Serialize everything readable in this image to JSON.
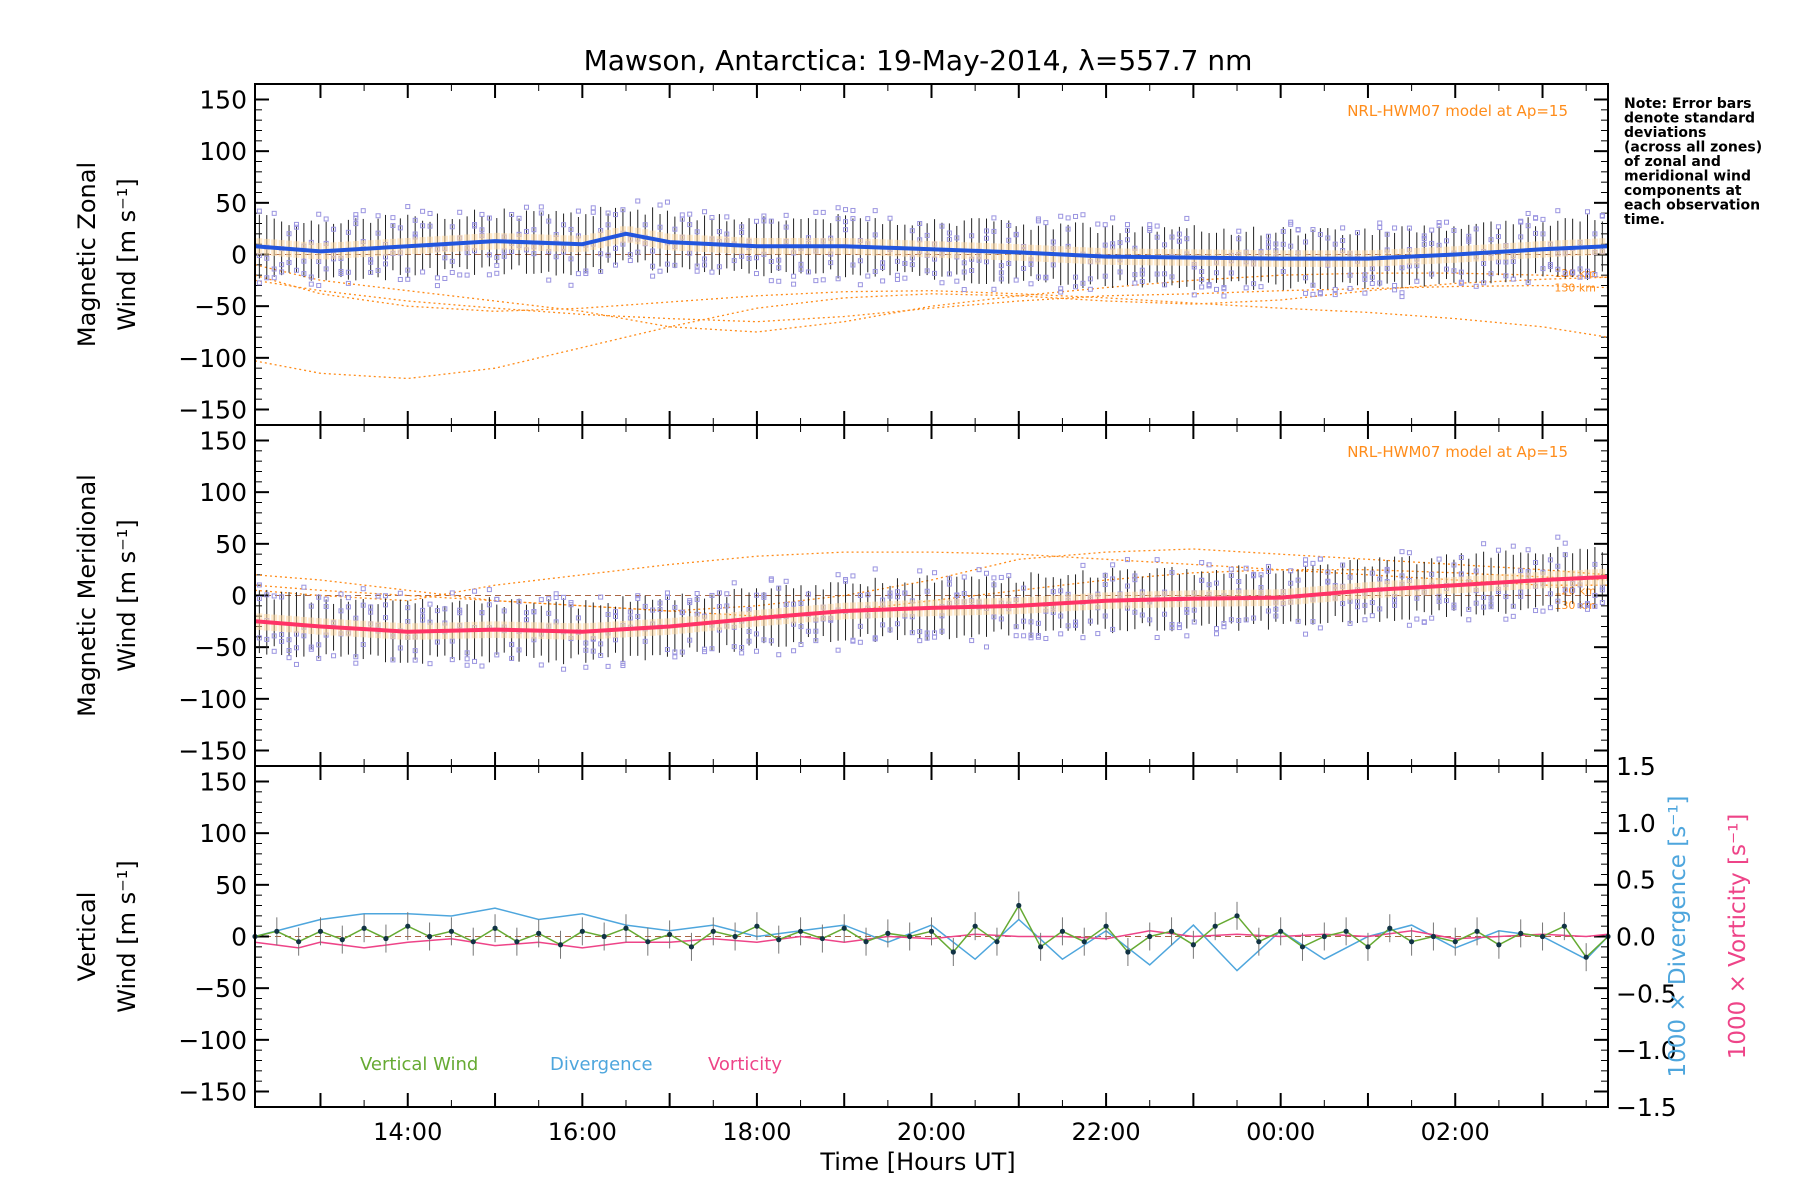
{
  "title": "Mawson, Antarctica: 19-May-2014, λ=557.7 nm",
  "note": [
    "Note: Error bars",
    "denote standard",
    "deviations",
    "(across all zones)",
    "of zonal and",
    "meridional wind",
    "components at",
    "each observation",
    "time."
  ],
  "xlabel": "Time [Hours UT]",
  "x_ticks": [
    "14:00",
    "16:00",
    "18:00",
    "20:00",
    "22:00",
    "00:00",
    "02:00"
  ],
  "y_ticks": [
    "150",
    "100",
    "50",
    "0",
    "−50",
    "−100",
    "−150"
  ],
  "right_ticks": [
    "1.5",
    "1.0",
    "0.5",
    "0.0",
    "−0.5",
    "−1.0",
    "−1.5"
  ],
  "model_label": "NRL-HWM07 model at Ap=15",
  "alt_labels": [
    "120 km",
    "130 km"
  ],
  "legend": {
    "vertical": "Vertical Wind",
    "divergence": "Divergence",
    "vorticity": "Vorticity"
  },
  "colors": {
    "zonal": "#2255dd",
    "meridional": "#ff3366",
    "model": "#ff8c1a",
    "scatter": "#9a94e0",
    "vertical": "#66aa33",
    "divergence": "#4ea6dd",
    "vorticity": "#ee4488"
  },
  "chart_data": [
    {
      "type": "line",
      "panel": "zonal",
      "title": "Mawson, Antarctica: 19-May-2014, λ=557.7 nm",
      "ylabel_lines": [
        "Magnetic Zonal",
        "Wind [m s⁻¹]"
      ],
      "xlabel": "",
      "x_range_hours_ut": [
        12.25,
        27.75
      ],
      "ylim": [
        -165,
        165
      ],
      "series": [
        {
          "name": "",
          "x": [
            12.25,
            13,
            14,
            15,
            16,
            16.5,
            17,
            18,
            19,
            20,
            21,
            22,
            23,
            24,
            25,
            26,
            27,
            27.75
          ],
          "y": [
            8,
            3,
            8,
            13,
            10,
            20,
            12,
            8,
            8,
            5,
            2,
            -2,
            -3,
            -4,
            -4,
            0,
            5,
            8
          ]
        }
      ],
      "model_series": [
        {
          "x": [
            12.25,
            13,
            14,
            15,
            16,
            17,
            18,
            19,
            20,
            21,
            22,
            23,
            24,
            25,
            26,
            27,
            27.75
          ],
          "y": [
            -103,
            -115,
            -120,
            -110,
            -90,
            -70,
            -52,
            -42,
            -38,
            -40,
            -45,
            -48,
            -44,
            -35,
            -28,
            -24,
            -22
          ]
        },
        {
          "x": [
            12.25,
            13,
            14,
            15,
            16,
            17,
            18,
            19,
            20,
            21,
            22,
            23,
            24,
            25,
            26,
            27,
            27.75
          ],
          "y": [
            -20,
            -38,
            -50,
            -55,
            -52,
            -46,
            -40,
            -36,
            -35,
            -38,
            -42,
            -47,
            -52,
            -56,
            -62,
            -70,
            -80
          ]
        },
        {
          "x": [
            12.25,
            13,
            14,
            15,
            16,
            17,
            18,
            19,
            20,
            21,
            22,
            23,
            24,
            25,
            26,
            27,
            27.75
          ],
          "y": [
            -10,
            -25,
            -35,
            -45,
            -55,
            -70,
            -75,
            -65,
            -50,
            -40,
            -32,
            -25,
            -20,
            -18,
            -18,
            -20,
            -22
          ]
        },
        {
          "x": [
            12.25,
            13,
            14,
            15,
            16,
            17,
            18,
            19,
            20,
            21,
            22,
            23,
            24,
            25,
            26,
            27,
            27.75
          ],
          "y": [
            -25,
            -35,
            -45,
            -52,
            -58,
            -62,
            -65,
            -60,
            -52,
            -45,
            -40,
            -38,
            -35,
            -33,
            -31,
            -30,
            -32
          ]
        }
      ]
    },
    {
      "type": "line",
      "panel": "meridional",
      "ylabel_lines": [
        "Magnetic Meridional",
        "Wind [m s⁻¹]"
      ],
      "xlabel": "",
      "x_range_hours_ut": [
        12.25,
        27.75
      ],
      "ylim": [
        -165,
        165
      ],
      "series": [
        {
          "name": "",
          "x": [
            12.25,
            13,
            14,
            15,
            16,
            17,
            18,
            19,
            20,
            21,
            22,
            23,
            24,
            25,
            26,
            27,
            27.75
          ],
          "y": [
            -25,
            -30,
            -35,
            -33,
            -35,
            -30,
            -22,
            -15,
            -12,
            -10,
            -5,
            -3,
            -2,
            5,
            10,
            15,
            18
          ]
        }
      ],
      "model_series": [
        {
          "x": [
            12.25,
            13,
            14,
            15,
            16,
            17,
            18,
            19,
            20,
            21,
            22,
            23,
            24,
            25,
            26,
            27,
            27.75
          ],
          "y": [
            20,
            15,
            5,
            -5,
            -10,
            -15,
            -10,
            0,
            15,
            35,
            42,
            45,
            40,
            35,
            30,
            25,
            20
          ]
        },
        {
          "x": [
            12.25,
            13,
            14,
            15,
            16,
            17,
            18,
            19,
            20,
            21,
            22,
            23,
            24,
            25,
            26,
            27,
            27.75
          ],
          "y": [
            10,
            5,
            0,
            -5,
            -10,
            -15,
            -20,
            -15,
            -5,
            5,
            15,
            22,
            25,
            25,
            22,
            18,
            15
          ]
        },
        {
          "x": [
            12.25,
            13,
            14,
            15,
            16,
            17,
            18,
            19,
            20,
            21,
            22,
            23,
            24,
            25,
            26,
            27,
            27.75
          ],
          "y": [
            5,
            0,
            -5,
            10,
            20,
            30,
            38,
            42,
            42,
            40,
            35,
            30,
            25,
            20,
            15,
            10,
            10
          ]
        }
      ]
    },
    {
      "type": "line",
      "panel": "vertical",
      "ylabel_lines": [
        "Vertical",
        "Wind [m s⁻¹]"
      ],
      "right_ylabel_lines": [
        "1000 × Divergence [s⁻¹]",
        "1000 × Vorticity [s⁻¹]"
      ],
      "xlabel": "Time [Hours UT]",
      "x_range_hours_ut": [
        12.25,
        27.75
      ],
      "ylim": [
        -165,
        165
      ],
      "right_ylim": [
        -1.5,
        1.5
      ],
      "series": [
        {
          "name": "Vertical Wind",
          "x": [
            12.25,
            12.5,
            12.75,
            13,
            13.25,
            13.5,
            13.75,
            14,
            14.25,
            14.5,
            14.75,
            15,
            15.25,
            15.5,
            15.75,
            16,
            16.25,
            16.5,
            16.75,
            17,
            17.25,
            17.5,
            17.75,
            18,
            18.25,
            18.5,
            18.75,
            19,
            19.25,
            19.5,
            19.75,
            20,
            20.25,
            20.5,
            20.75,
            21,
            21.25,
            21.5,
            21.75,
            22,
            22.25,
            22.5,
            22.75,
            23,
            23.25,
            23.5,
            23.75,
            24,
            24.25,
            24.5,
            24.75,
            25,
            25.25,
            25.5,
            25.75,
            26,
            26.25,
            26.5,
            26.75,
            27,
            27.25,
            27.5,
            27.75
          ],
          "y": [
            0,
            5,
            -5,
            5,
            -3,
            8,
            -2,
            10,
            0,
            5,
            -5,
            8,
            -5,
            3,
            -8,
            5,
            0,
            8,
            -5,
            2,
            -10,
            5,
            0,
            10,
            -3,
            5,
            -2,
            8,
            -5,
            3,
            0,
            5,
            -15,
            10,
            -5,
            30,
            -10,
            5,
            -5,
            10,
            -15,
            0,
            5,
            -8,
            10,
            20,
            -5,
            5,
            -10,
            0,
            5,
            -10,
            8,
            -5,
            0,
            -5,
            5,
            -8,
            3,
            0,
            10,
            -20,
            0
          ]
        },
        {
          "name": "Divergence",
          "x": [
            12.25,
            12.75,
            13,
            13.5,
            14,
            14.5,
            15,
            15.5,
            16,
            16.5,
            17,
            17.5,
            18,
            18.5,
            19,
            19.5,
            20,
            20.5,
            21,
            21.5,
            22,
            22.5,
            23,
            23.5,
            24,
            24.5,
            25,
            25.5,
            26,
            26.5,
            27,
            27.5,
            27.75
          ],
          "y": [
            0,
            0.1,
            0.15,
            0.2,
            0.2,
            0.18,
            0.25,
            0.15,
            0.2,
            0.1,
            0.05,
            0.1,
            0.0,
            0.05,
            0.1,
            -0.05,
            0.1,
            -0.2,
            0.15,
            -0.2,
            0.05,
            -0.25,
            0.1,
            -0.3,
            0.05,
            -0.2,
            0.0,
            0.1,
            -0.1,
            0.05,
            0.0,
            -0.2,
            0.0
          ]
        },
        {
          "name": "Vorticity",
          "x": [
            12.25,
            12.75,
            13,
            13.5,
            14,
            14.5,
            15,
            15.5,
            16,
            16.5,
            17,
            17.5,
            18,
            18.5,
            19,
            19.5,
            20,
            20.5,
            21,
            21.5,
            22,
            22.5,
            23,
            23.5,
            24,
            24.5,
            25,
            25.5,
            26,
            26.5,
            27,
            27.5,
            27.75
          ],
          "y": [
            -0.05,
            -0.1,
            -0.05,
            -0.1,
            -0.05,
            -0.02,
            -0.08,
            -0.05,
            -0.1,
            -0.05,
            -0.05,
            -0.02,
            -0.05,
            0.0,
            -0.05,
            0.0,
            -0.02,
            0.02,
            0.0,
            0.0,
            -0.02,
            0.05,
            0.0,
            0.02,
            0.0,
            0.02,
            0.0,
            0.05,
            -0.02,
            0.0,
            0.02,
            0.0,
            0.02
          ]
        }
      ]
    }
  ]
}
